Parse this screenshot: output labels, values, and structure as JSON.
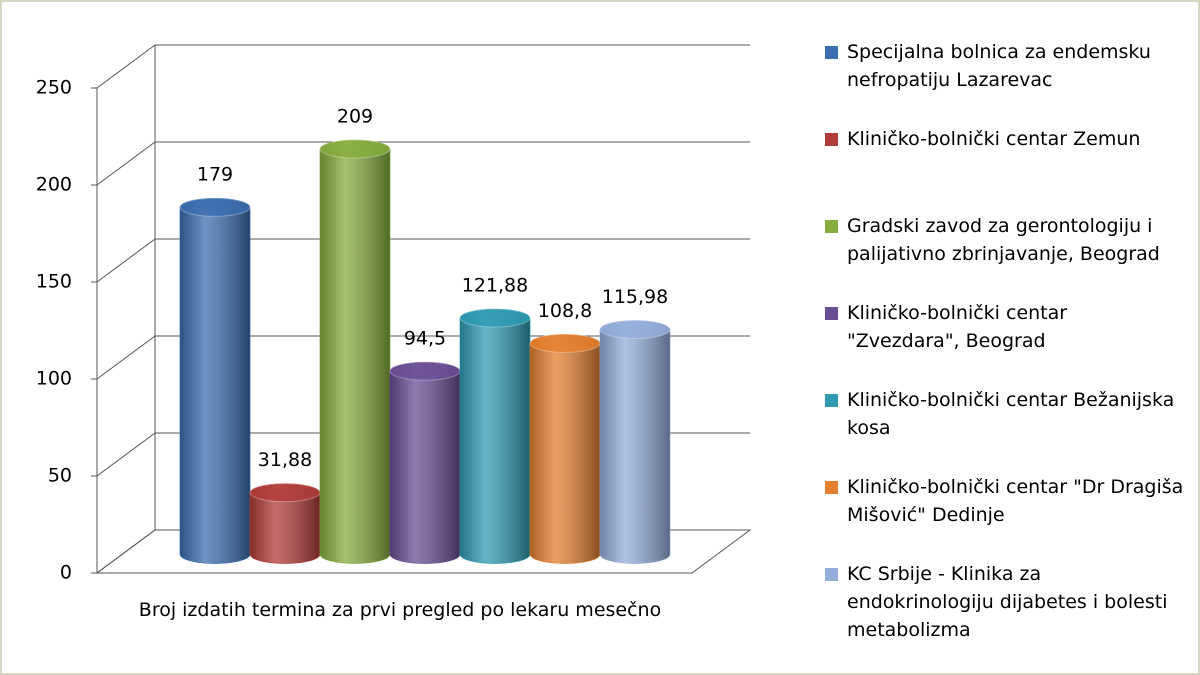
{
  "chart_data": {
    "type": "bar3d",
    "categories": [
      "Broj izdatih termina za prvi pregled po lekaru mesečno"
    ],
    "ylim": [
      0,
      250
    ],
    "yticks": [
      0,
      50,
      100,
      150,
      200,
      250
    ],
    "grid": true,
    "legend": "right",
    "series": [
      {
        "name": "Specijalna bolnica za endemsku nefropatiju Lazarevac",
        "color": "#3b6db0",
        "values": [
          179
        ]
      },
      {
        "name": "Kliničko-bolnički centar Zemun",
        "color": "#b23c3a",
        "values": [
          31.88
        ],
        "value_labels": [
          "31,88"
        ]
      },
      {
        "name": "Gradski zavod za gerontologiju i palijativno zbrinjavanje, Beograd",
        "color": "#86ad3e",
        "values": [
          209
        ]
      },
      {
        "name": "Kliničko-bolnički centar \"Zvezdara\", Beograd",
        "color": "#6a4d94",
        "values": [
          94.5
        ],
        "value_labels": [
          "94,5"
        ]
      },
      {
        "name": "Kliničko-bolnički centar Bežanijska kosa",
        "color": "#2e9bb3",
        "values": [
          121.88
        ],
        "value_labels": [
          "121,88"
        ]
      },
      {
        "name": "Kliničko-bolnički centar \"Dr Dragiša Mišović\" Dedinje",
        "color": "#e57f2e",
        "values": [
          108.8
        ],
        "value_labels": [
          "108,8"
        ]
      },
      {
        "name": "KC Srbije - Klinika za endokrinologiju dijabetes i bolesti metabolizma",
        "color": "#94aedb",
        "values": [
          115.98
        ],
        "value_labels": [
          "115,98"
        ]
      }
    ]
  }
}
